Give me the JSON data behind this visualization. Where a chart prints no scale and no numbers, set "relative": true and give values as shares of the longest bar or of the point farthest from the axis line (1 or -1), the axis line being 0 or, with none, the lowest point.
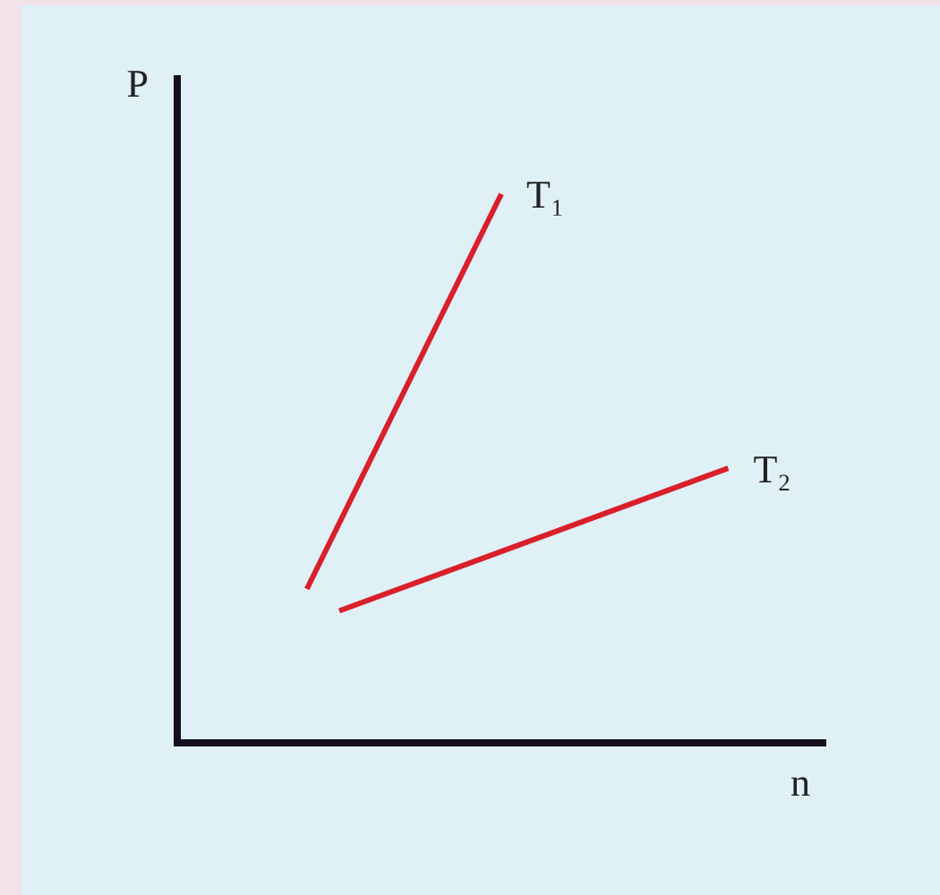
{
  "chart_data": {
    "type": "line",
    "relative": true,
    "xlabel": "n",
    "ylabel": "P",
    "grid": false,
    "legend": false,
    "marker": "none",
    "line_style": "solid",
    "categories": [
      null,
      null,
      null,
      null,
      null,
      null,
      null,
      null,
      null,
      null,
      null,
      null,
      null,
      null,
      null,
      null,
      null,
      null,
      null,
      null,
      null
    ],
    "series": [
      {
        "name": "T₁",
        "color": "#d9202a",
        "values": [
          null,
          null,
          null,
          null,
          0.28,
          null,
          null,
          null,
          null,
          null,
          1,
          null,
          null,
          null,
          null,
          null,
          null,
          null,
          null,
          null,
          null
        ]
      },
      {
        "name": "T₂",
        "color": "#d9202a",
        "values": [
          null,
          null,
          null,
          null,
          null,
          0.24,
          null,
          null,
          null,
          null,
          null,
          null,
          null,
          null,
          null,
          null,
          null,
          0.5,
          null,
          null,
          null
        ]
      }
    ]
  }
}
